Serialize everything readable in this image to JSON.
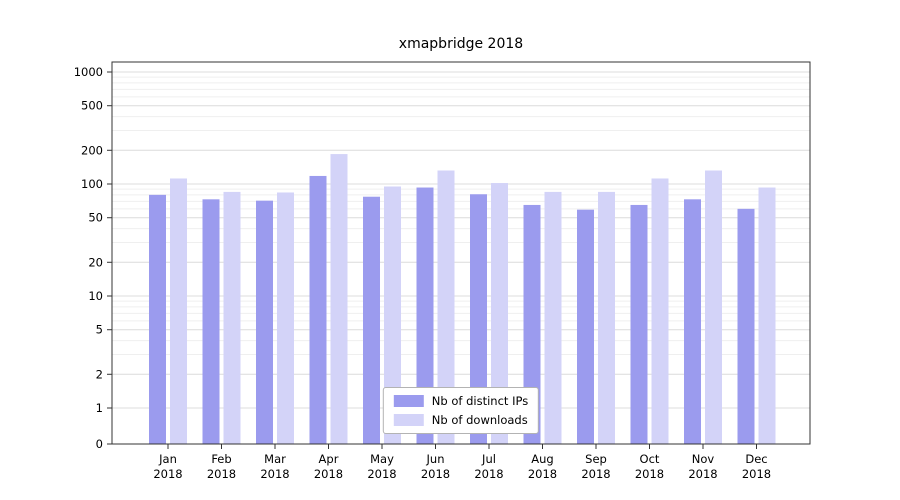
{
  "chart_data": {
    "type": "bar",
    "title": "xmapbridge 2018",
    "year_label": "2018",
    "categories": [
      "Jan",
      "Feb",
      "Mar",
      "Apr",
      "May",
      "Jun",
      "Jul",
      "Aug",
      "Sep",
      "Oct",
      "Nov",
      "Dec"
    ],
    "series": [
      {
        "name": "Nb of distinct IPs",
        "color": "#9b9bee",
        "values": [
          80,
          73,
          71,
          118,
          77,
          93,
          81,
          65,
          59,
          65,
          73,
          60
        ]
      },
      {
        "name": "Nb of downloads",
        "color": "#d3d3f8",
        "values": [
          112,
          85,
          84,
          185,
          95,
          132,
          102,
          85,
          85,
          112,
          132,
          93
        ]
      }
    ],
    "yscale": "log",
    "ylim": [
      0,
      1000
    ],
    "yticks": [
      0,
      1,
      2,
      5,
      10,
      20,
      50,
      100,
      200,
      500,
      1000
    ],
    "grid": "horizontal",
    "legend_position": "lower-center"
  },
  "colors": {
    "background": "#ffffff",
    "axis": "#333333",
    "tick_label": "#000000",
    "grid_major": "#dcdcdc",
    "grid_minor": "#efefef"
  }
}
